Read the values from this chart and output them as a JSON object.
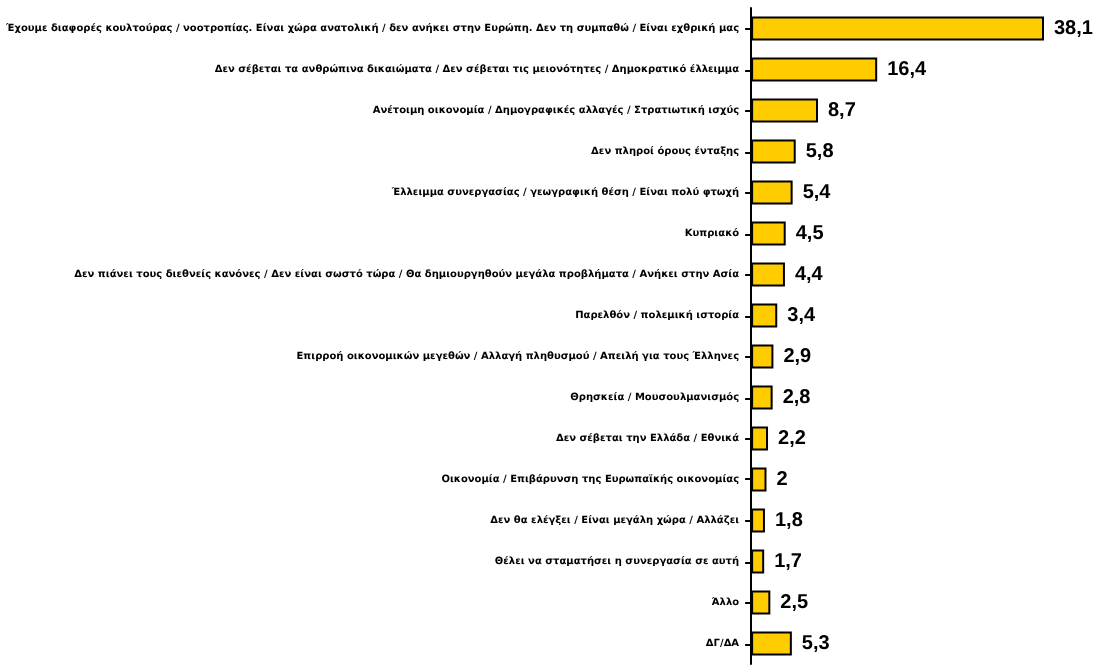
{
  "chart_data": {
    "type": "bar",
    "orientation": "horizontal",
    "categories": [
      "Έχουμε διαφορές κουλτούρας / νοοτροπίας. Είναι χώρα ανατολική / δεν ανήκει στην Ευρώπη. Δεν τη συμπαθώ / Είναι εχθρική μας",
      "Δεν σέβεται τα ανθρώπινα δικαιώματα / Δεν σέβεται τις μειονότητες / Δημοκρατικό έλλειμμα",
      "Ανέτοιμη οικονομία / Δημογραφικές αλλαγές / Στρατιωτική ισχύς",
      "Δεν πληροί όρους ένταξης",
      "Έλλειμμα συνεργασίας / γεωγραφική θέση / Είναι πολύ φτωχή",
      "Κυπριακό",
      "Δεν πιάνει τους διεθνείς κανόνες / Δεν είναι σωστό τώρα / Θα δημιουργηθούν μεγάλα προβλήματα / Ανήκει στην Ασία",
      "Παρελθόν / πολεμική ιστορία",
      "Επιρροή οικονομικών μεγεθών / Αλλαγή πληθυσμού / Απειλή για τους Έλληνες",
      "Θρησκεία / Μουσουλμανισμός",
      "Δεν σέβεται την Ελλάδα / Εθνικά",
      "Οικονομία / Επιβάρυνση της Ευρωπαϊκής οικονομίας",
      "Δεν θα ελέγξει / Είναι μεγάλη χώρα / Αλλάζει",
      "Θέλει να σταματήσει η συνεργασία σε αυτή",
      "Άλλο",
      "ΔΓ/ΔΑ"
    ],
    "values": [
      38.1,
      16.4,
      8.7,
      5.8,
      5.4,
      4.5,
      4.4,
      3.4,
      2.9,
      2.8,
      2.2,
      2,
      1.8,
      1.7,
      2.5,
      5.3
    ],
    "value_labels": [
      "38,1",
      "16,4",
      "8,7",
      "5,8",
      "5,4",
      "4,5",
      "4,4",
      "3,4",
      "2,9",
      "2,8",
      "2,2",
      "2",
      "1,8",
      "1,7",
      "2,5",
      "5,3"
    ],
    "color": "#ffcc00"
  }
}
